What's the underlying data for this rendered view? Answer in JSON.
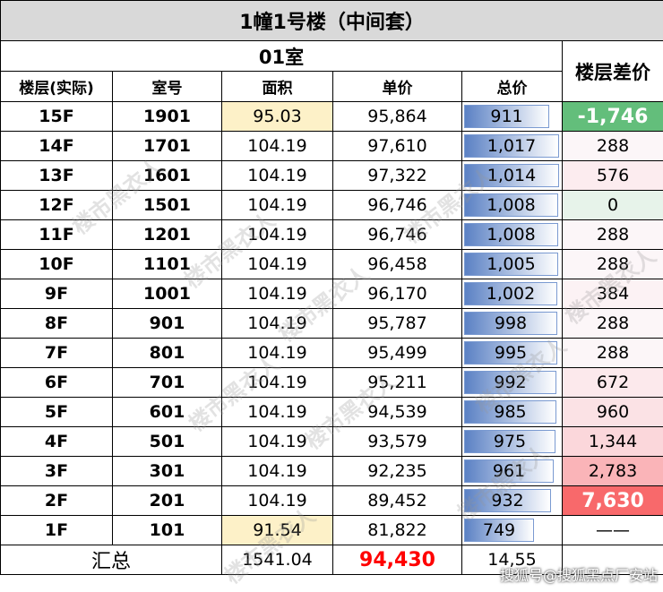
{
  "title": "1幢1号楼（中间套）",
  "room_header": "01室",
  "diff_header": "楼层差价",
  "columns": [
    "楼层(实际)",
    "室号",
    "面积",
    "单价",
    "总价"
  ],
  "colors": {
    "bar": "#5b81c4",
    "area_highlight": "#fdf1c8",
    "diff_green": "#63be7b",
    "diff_red": "#f8696b",
    "sum_price": "#ff0000"
  },
  "total_max": 1017,
  "rows": [
    {
      "floor": "15F",
      "room": "1901",
      "area": "95.03",
      "price": "95,864",
      "total": "911",
      "total_value": 911,
      "diff": "-1,746",
      "diff_color": "#63be7b",
      "diff_text": "#ffffff",
      "area_highlight": true
    },
    {
      "floor": "14F",
      "room": "1701",
      "area": "104.19",
      "price": "97,610",
      "total": "1,017",
      "total_value": 1017,
      "diff": "288",
      "diff_color": "#fcf6f8",
      "diff_text": "#000000"
    },
    {
      "floor": "13F",
      "room": "1601",
      "area": "104.19",
      "price": "97,322",
      "total": "1,014",
      "total_value": 1014,
      "diff": "576",
      "diff_color": "#fcecef",
      "diff_text": "#000000"
    },
    {
      "floor": "12F",
      "room": "1501",
      "area": "104.19",
      "price": "96,746",
      "total": "1,008",
      "total_value": 1008,
      "diff": "0",
      "diff_color": "#e7f3ea",
      "diff_text": "#000000"
    },
    {
      "floor": "11F",
      "room": "1201",
      "area": "104.19",
      "price": "96,746",
      "total": "1,008",
      "total_value": 1008,
      "diff": "288",
      "diff_color": "#fcf6f8",
      "diff_text": "#000000"
    },
    {
      "floor": "10F",
      "room": "1101",
      "area": "104.19",
      "price": "96,458",
      "total": "1,005",
      "total_value": 1005,
      "diff": "288",
      "diff_color": "#fcf6f8",
      "diff_text": "#000000"
    },
    {
      "floor": "9F",
      "room": "1001",
      "area": "104.19",
      "price": "96,170",
      "total": "1,002",
      "total_value": 1002,
      "diff": "384",
      "diff_color": "#fcf2f4",
      "diff_text": "#000000"
    },
    {
      "floor": "8F",
      "room": "901",
      "area": "104.19",
      "price": "95,787",
      "total": "998",
      "total_value": 998,
      "diff": "288",
      "diff_color": "#fcf6f8",
      "diff_text": "#000000"
    },
    {
      "floor": "7F",
      "room": "801",
      "area": "104.19",
      "price": "95,499",
      "total": "995",
      "total_value": 995,
      "diff": "288",
      "diff_color": "#fcf6f8",
      "diff_text": "#000000"
    },
    {
      "floor": "6F",
      "room": "701",
      "area": "104.19",
      "price": "95,211",
      "total": "992",
      "total_value": 992,
      "diff": "672",
      "diff_color": "#fce9ec",
      "diff_text": "#000000"
    },
    {
      "floor": "5F",
      "room": "601",
      "area": "104.19",
      "price": "94,539",
      "total": "985",
      "total_value": 985,
      "diff": "960",
      "diff_color": "#fbe2e5",
      "diff_text": "#000000"
    },
    {
      "floor": "4F",
      "room": "501",
      "area": "104.19",
      "price": "93,579",
      "total": "975",
      "total_value": 975,
      "diff": "1,344",
      "diff_color": "#fbd7db",
      "diff_text": "#000000"
    },
    {
      "floor": "3F",
      "room": "301",
      "area": "104.19",
      "price": "92,235",
      "total": "961",
      "total_value": 961,
      "diff": "2,783",
      "diff_color": "#fab4b8",
      "diff_text": "#000000"
    },
    {
      "floor": "2F",
      "room": "201",
      "area": "104.19",
      "price": "89,452",
      "total": "932",
      "total_value": 932,
      "diff": "7,630",
      "diff_color": "#f8696b",
      "diff_text": "#ffffff"
    },
    {
      "floor": "1F",
      "room": "101",
      "area": "91.54",
      "price": "81,822",
      "total": "749",
      "total_value": 749,
      "diff": "——",
      "diff_color": "#ffffff",
      "diff_text": "#000000",
      "area_highlight": true
    }
  ],
  "summary": {
    "label": "汇总",
    "area": "1541.04",
    "price": "94,430",
    "total": "14,55"
  },
  "watermark": "楼市黑衣人",
  "credit": "搜狐号@搜狐黑点厂安站"
}
